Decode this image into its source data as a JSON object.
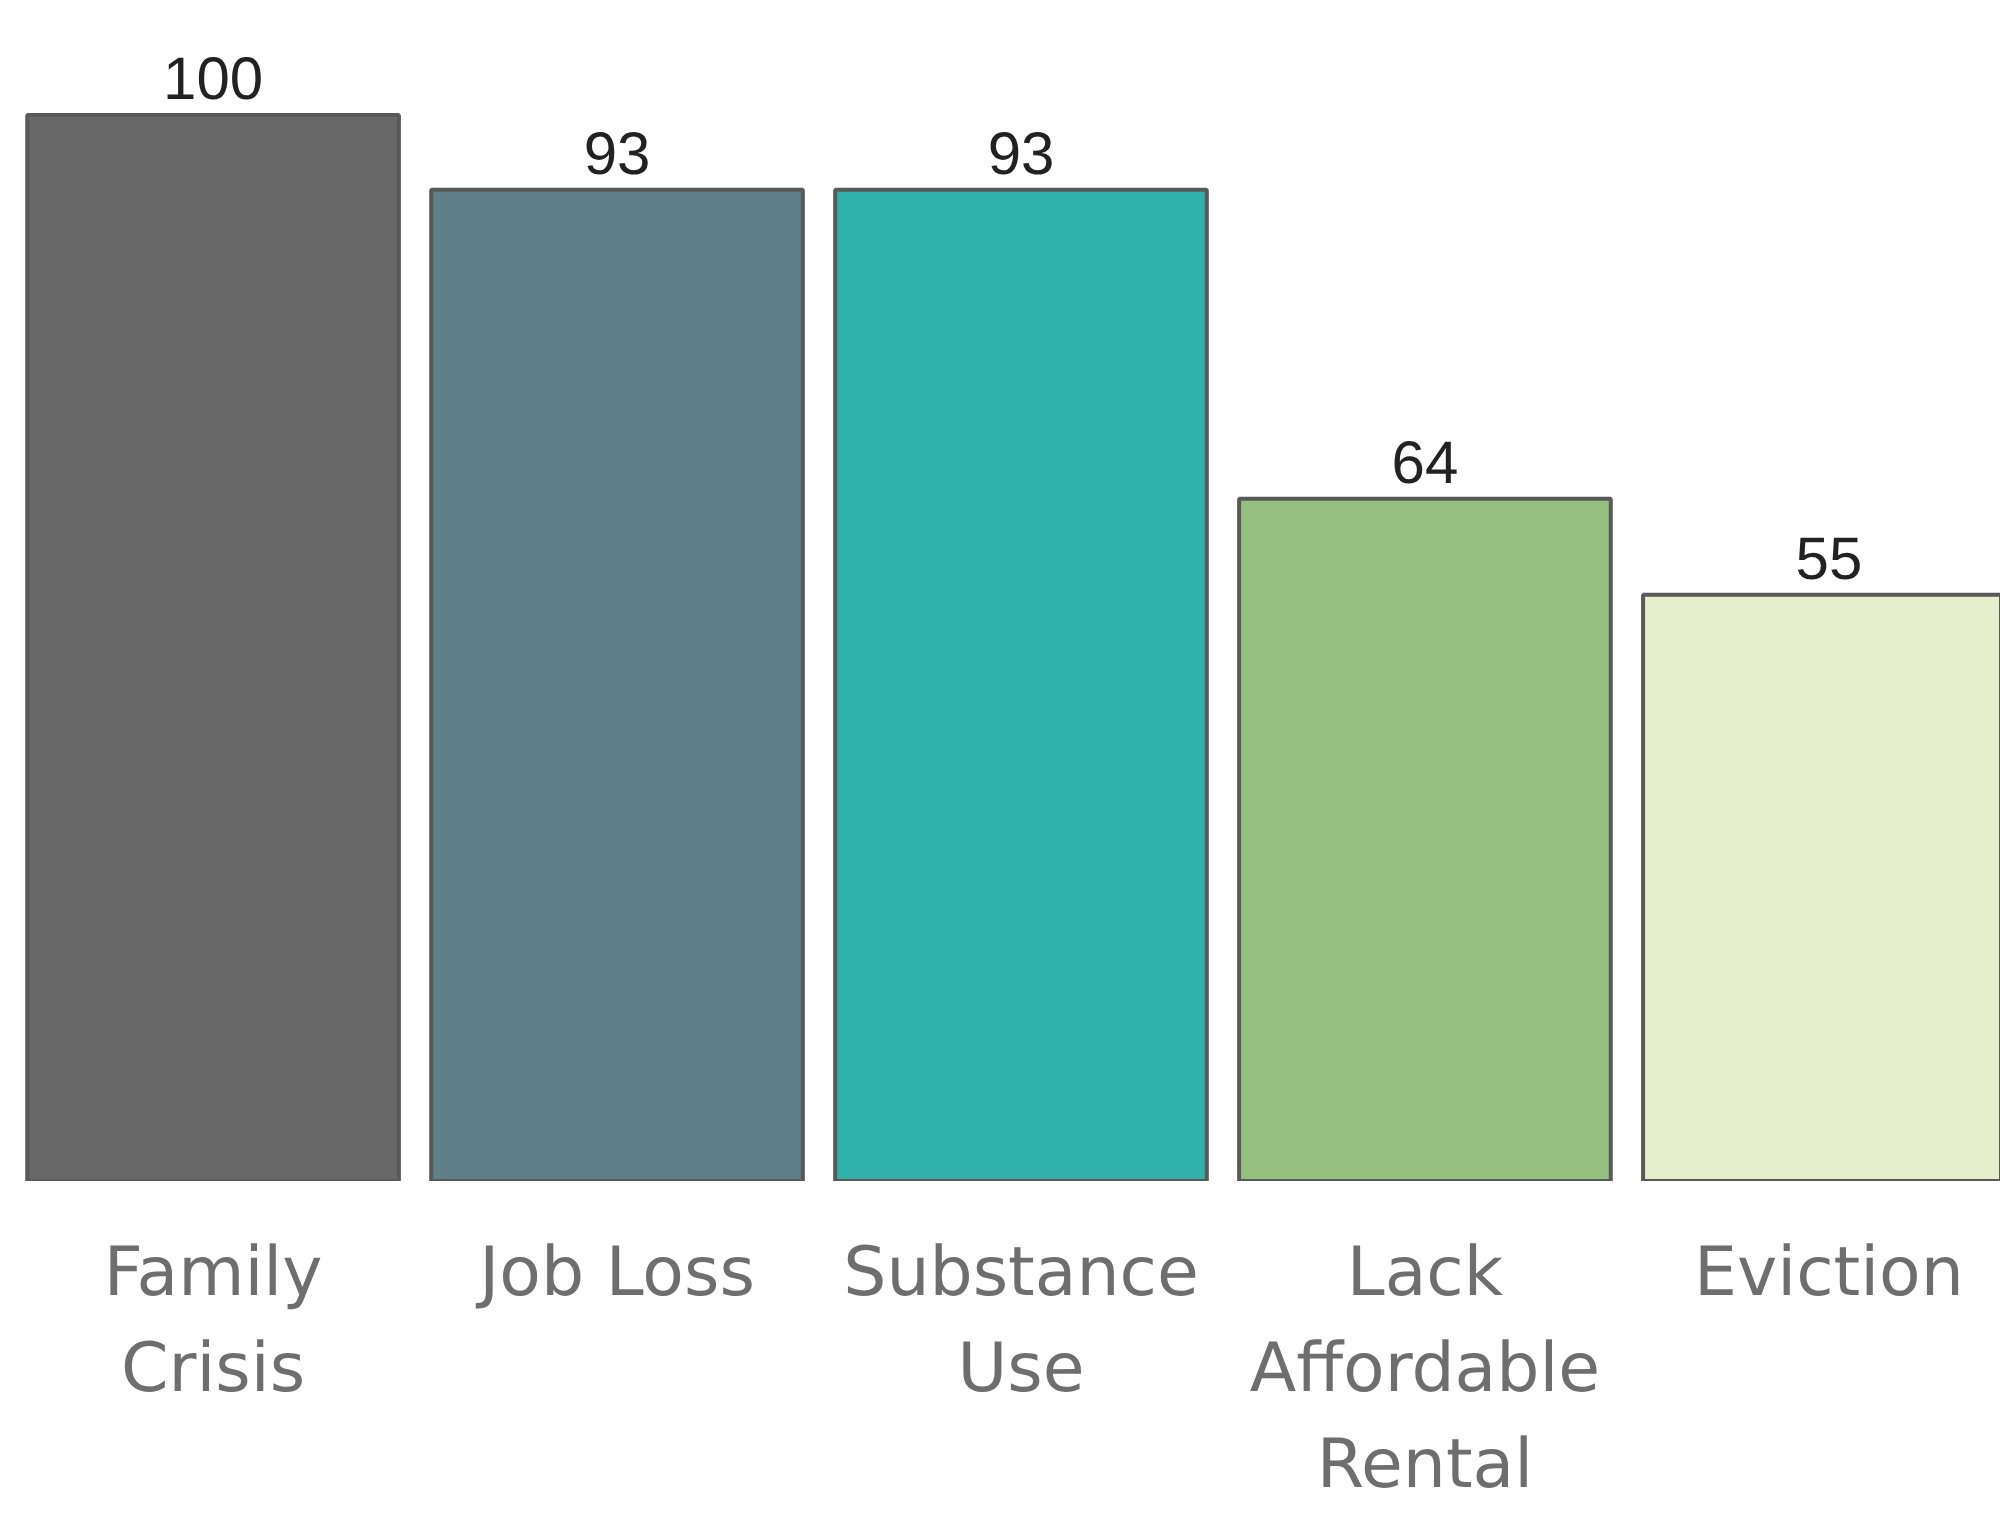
{
  "chart_data": {
    "type": "bar",
    "categories": [
      "Family\nCrisis",
      "Job Loss",
      "Substance\nUse",
      "Lack\nAffordable\nRental",
      "Eviction"
    ],
    "values": [
      100,
      93,
      93,
      64,
      55
    ],
    "colors": [
      "#686868",
      "#5f8088",
      "#30b0aa",
      "#95c07f",
      "#e6efcc"
    ],
    "data_labels": true
  }
}
